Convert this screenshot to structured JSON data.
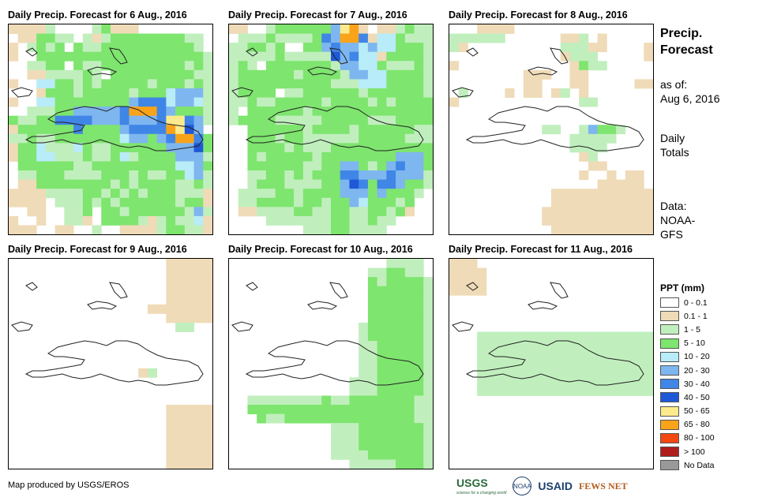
{
  "palette": {
    "0": "#ffffff",
    "1": "#efdbb8",
    "2": "#c0efbd",
    "3": "#7ee56e",
    "4": "#b8ecf8",
    "5": "#7eb6ef",
    "6": "#3f86e6",
    "7": "#1f59d8",
    "8": "#fdea8c",
    "9": "#f9a31a",
    "10": "#f44810",
    "11": "#b01d1d",
    "12": "#999999"
  },
  "panels": [
    {
      "title": "Daily Precip. Forecast for 6 Aug., 2016",
      "grid": [
        "1111200002311100000000",
        "0113322021233333333220",
        "1023230322333333333320",
        "1003333333333333333332",
        "0022330322333333333232",
        "0011222232033333333322",
        "1004433232333332333232",
        "0001333233333233345552",
        "1004433333333566645542",
        "0022233555556999653332",
        "3223366665556555688652",
        "1333333633335666698750",
        "2232233333334553569963",
        "1334222432233333355573",
        "1334422232234233335552",
        "0333333223333333334453",
        "0223332222333232233452",
        "0113333333323233332232",
        "1111222233232323332221",
        "1111022232323333332331",
        "0011002230332333333252",
        "1001002210333321232241",
        "1110011002001111233221"
      ]
    },
    {
      "title": "Daily Precip. Forecast for 7 Aug., 2016",
      "grid": [
        "1100233333358910112322",
        "0222322223659961443222",
        "2233230033565545443332",
        "2222232222275644133332",
        "2320333333325544322232",
        "2333333233332554433332",
        "2333333333322244433332",
        "2333302233333323333332",
        "2232233333233332323333",
        "2033333323333333333333",
        "2333322222333332223333",
        "0033333323333233333322",
        "0033323322222233333222",
        "0033332322233333333333",
        "0032333332333333335553",
        "0033333322335532356553",
        "0022332323336655565552",
        "0023332222335763665332",
        "0222233233335553533320",
        "0223333233233543332300",
        "0112222332233223323100",
        "0000222222233223220000",
        "0000000022233222200000"
      ]
    },
    {
      "title": "Daily Precip. Forecast for 8 Aug., 2016",
      "grid": [
        "0001111000000000000000",
        "2222220000001120100000",
        "2100000000002221100001",
        "0000000000001222000001",
        "1000000000000132200000",
        "0000000011100110000000",
        "0000000011000110000011",
        "0200001011012010000000",
        "1000000000000022000000",
        "0000000000000000000000",
        "0000000000000000000000",
        "0000000000220025332000",
        "0000000000000222220000",
        "0000000000000222200000",
        "0000000000000012000000",
        "0000000000000001100000",
        "0000000000000010010110",
        "0000000000000000111110",
        "0000000000011111111111",
        "0000000000011111111111",
        "0000000000111111111111",
        "0000000000111111111111",
        "0000000000011111111111"
      ]
    },
    {
      "title": "Daily Precip. Forecast for 9 Aug., 2016",
      "grid": [
        "0000000000000000011111",
        "0000000000000000011111",
        "0000000000000000011111",
        "0000000000000000011111",
        "0000000000000000011111",
        "0000000000000001111111",
        "0000000000000000011111",
        "0000000000000000002200",
        "0000000000000000000000",
        "0000000000000000000000",
        "0000000000000000000000",
        "0000000000000000000000",
        "0000000000000012000000",
        "0000000000000000000000",
        "0000000000000000000000",
        "0000000000000000000000",
        "0000000000000000011111",
        "0000000000000000011111",
        "0000000000000000011111",
        "0000000000000000011111",
        "0000000000000000011111",
        "0000000000000000011111",
        "0000000000000000011111"
      ]
    },
    {
      "title": "Daily Precip. Forecast for 10 Aug., 2016",
      "grid": [
        "0000000000000000022220",
        "0000000000000002233220",
        "0000000000000003233332",
        "0000000000000003333332",
        "0000000000000003333332",
        "0000000000000003333332",
        "0000000000000003333332",
        "0000000000000023333332",
        "0000000000000023333332",
        "0000000000000022333332",
        "0000000000000022333332",
        "0000000000000022333332",
        "0000000000000022333332",
        "0000000000000222333332",
        "0000000000000222333332",
        "0022222222322333333322",
        "0033333333333333333322",
        "0003223333333333333322",
        "0000000000022233333332",
        "0000000000022233333332",
        "0000000000022233333332",
        "0000000000022223333332",
        "0000000000000222223332"
      ]
    },
    {
      "title": "Daily Precip. Forecast for 11 Aug., 2016",
      "grid": [
        "1110000000000000000000",
        "1111000000000000000000",
        "1111000000000000000000",
        "1111000000000000000000",
        "0000000000000000000000",
        "0000000000000000000000",
        "0000000000000000000000",
        "0000000000000000000000",
        "0002222222222222222222",
        "0002222222222222222222",
        "0002222222222222222222",
        "0002222222222222222222",
        "0002222222222222222222",
        "0002222222222222222222",
        "0002222222222222222222",
        "0000000000000000000000",
        "0000000000000000000000",
        "0000000000000000000000",
        "0000000000000000000000",
        "0000000000000000000000",
        "0000000000000000000000",
        "0000000000000000000000",
        "0000000000000000000000"
      ]
    }
  ],
  "side": {
    "title_line1": "Precip.",
    "title_line2": "Forecast",
    "asof_label": "as of:",
    "asof_date": "Aug 6, 2016",
    "totals_line1": "Daily",
    "totals_line2": "Totals",
    "data_label": "Data:",
    "data_line1": "NOAA-",
    "data_line2": "GFS"
  },
  "legend": {
    "title": "PPT (mm)",
    "items": [
      {
        "label": "0 - 0.1",
        "color": "#ffffff"
      },
      {
        "label": "0.1 - 1",
        "color": "#efdbb8"
      },
      {
        "label": "1 - 5",
        "color": "#c0efbd"
      },
      {
        "label": "5 - 10",
        "color": "#7ee56e"
      },
      {
        "label": "10 - 20",
        "color": "#b8ecf8"
      },
      {
        "label": "20 - 30",
        "color": "#7eb6ef"
      },
      {
        "label": "30 - 40",
        "color": "#3f86e6"
      },
      {
        "label": "40 - 50",
        "color": "#1f59d8"
      },
      {
        "label": "50 - 65",
        "color": "#fdea8c"
      },
      {
        "label": "65 - 80",
        "color": "#f9a31a"
      },
      {
        "label": "80 - 100",
        "color": "#f44810"
      },
      {
        "label": "> 100",
        "color": "#b01d1d"
      },
      {
        "label": "No Data",
        "color": "#999999"
      }
    ]
  },
  "credit": "Map produced by USGS/EROS",
  "logos": {
    "usgs": "USGS",
    "usgs_tagline": "science for a changing world",
    "noaa": "NOAA",
    "usaid": "USAID",
    "fewsnet": "FEWS NET"
  }
}
